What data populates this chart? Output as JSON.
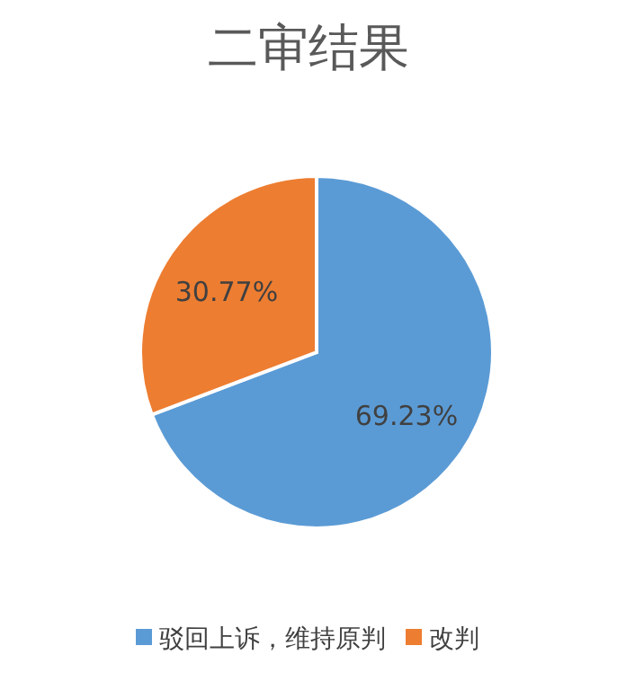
{
  "chart_data": {
    "type": "pie",
    "title": "二审结果",
    "categories": [
      "驳回上诉，维持原判",
      "改判"
    ],
    "values": [
      69.23,
      30.77
    ],
    "colors": [
      "#5b9bd5",
      "#ed7d31"
    ],
    "value_labels": [
      "69.23%",
      "30.77%"
    ],
    "legend": "bottom"
  }
}
